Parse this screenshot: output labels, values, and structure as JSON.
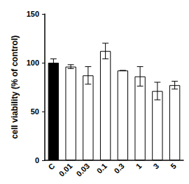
{
  "chart_data": {
    "type": "bar",
    "y_label": "cell viability (% of control)",
    "categories": [
      "C",
      "0.01",
      "0.03",
      "0.1",
      "0.3",
      "1",
      "3",
      "5"
    ],
    "values": [
      100,
      96,
      87,
      112,
      92,
      86,
      71,
      77
    ],
    "errors": [
      4,
      2,
      9,
      8,
      0,
      10,
      9,
      4
    ],
    "colors": [
      "#000000",
      "#ffffff",
      "#ffffff",
      "#ffffff",
      "#ffffff",
      "#ffffff",
      "#ffffff",
      "#ffffff"
    ],
    "ylim": [
      0,
      150
    ],
    "yticks": [
      0,
      50,
      100,
      150
    ],
    "grid": false
  }
}
